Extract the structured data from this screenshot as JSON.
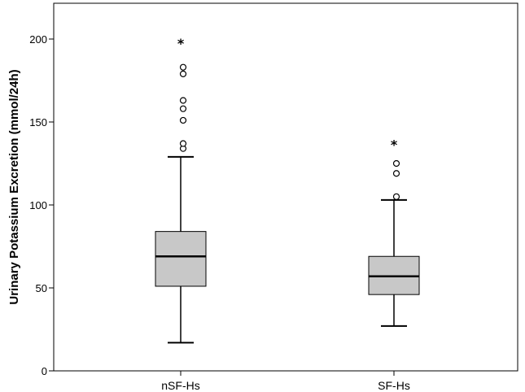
{
  "chart_data": {
    "type": "box",
    "ylabel": "Urinary Potassium Excretion (mmol/24h)",
    "xlabel": "",
    "ylim": [
      0,
      215
    ],
    "yticks": [
      0,
      50,
      100,
      150,
      200
    ],
    "grid": false,
    "categories": [
      "nSF-Hs",
      "SF-Hs"
    ],
    "boxes": [
      {
        "category": "nSF-Hs",
        "whisker_low": 17,
        "q1": 51,
        "median": 69,
        "q3": 84,
        "whisker_high": 129,
        "outliers": [
          134,
          137,
          151,
          158,
          163,
          179,
          183
        ],
        "extremes": [
          199
        ]
      },
      {
        "category": "SF-Hs",
        "whisker_low": 27,
        "q1": 46,
        "median": 57,
        "q3": 69,
        "whisker_high": 103,
        "outliers": [
          105,
          119,
          125
        ],
        "extremes": [
          138
        ]
      }
    ],
    "colors": {
      "box_fill": "#c8c8c8",
      "stroke": "#000000"
    }
  }
}
